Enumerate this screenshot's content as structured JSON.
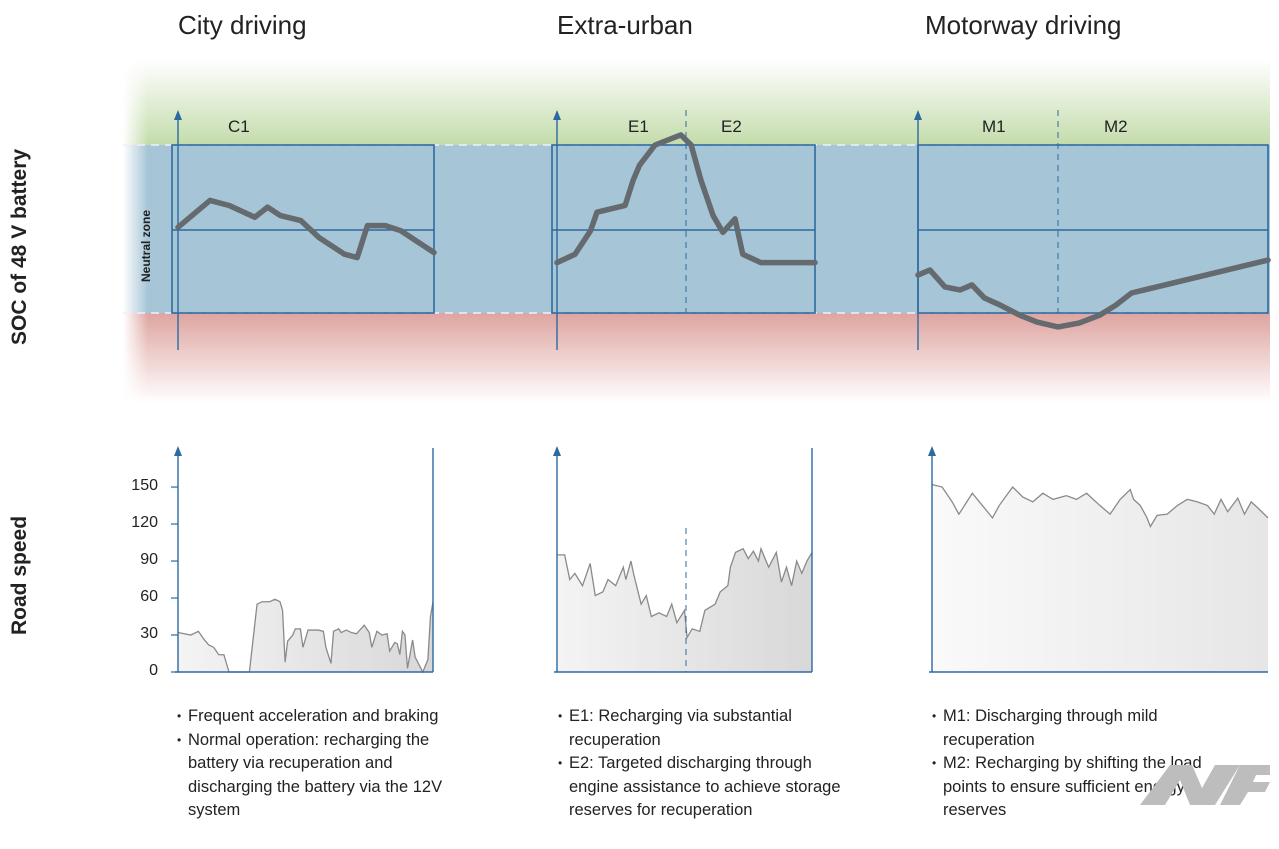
{
  "columns": [
    {
      "title": "City driving",
      "segments": [
        "C1"
      ],
      "notes": [
        "Frequent acceleration and braking",
        "Normal operation: recharging the battery via recuperation and discharging the battery via the 12V system"
      ]
    },
    {
      "title": "Extra-urban",
      "segments": [
        "E1",
        "E2"
      ],
      "notes": [
        "E1: Recharging via substantial recuperation",
        "E2: Targeted discharging through engine assistance to achieve storage reserves for recuperation"
      ]
    },
    {
      "title": "Motorway driving",
      "segments": [
        "M1",
        "M2"
      ],
      "notes": [
        "M1: Discharging through mild recuperation",
        "M2: Recharging by shifting the load points to ensure sufficient energy reserves"
      ]
    }
  ],
  "soc_axis_label": "SOC of 48 V battery",
  "neutral_zone_label": "Neutral zone",
  "speed_axis_label": "Road speed",
  "watermark": "Motor-Fan.jp",
  "colors": {
    "upper_zone": "#c9e0b4",
    "neutral_zone": "#a6c5d7",
    "lower_zone": "#dfa9a5",
    "axis": "#2d6a9f",
    "soc_line": "#646a6e"
  },
  "chart_data": [
    {
      "type": "line",
      "ylabel": "SOC of 48 V battery",
      "y_scale_note": "0 = lower neutral-zone boundary, 1 = upper boundary",
      "series": [
        {
          "name": "C1",
          "points": [
            [
              0,
              0.51
            ],
            [
              12.5,
              0.67
            ],
            [
              20,
              0.64
            ],
            [
              30,
              0.57
            ],
            [
              35,
              0.63
            ],
            [
              40,
              0.58
            ],
            [
              48,
              0.55
            ],
            [
              55,
              0.45
            ],
            [
              65,
              0.35
            ],
            [
              70,
              0.33
            ],
            [
              74,
              0.52
            ],
            [
              81,
              0.52
            ],
            [
              87,
              0.49
            ],
            [
              100,
              0.36
            ]
          ]
        },
        {
          "name": "E1/E2",
          "points": [
            [
              0,
              0.3
            ],
            [
              7,
              0.35
            ],
            [
              13,
              0.49
            ],
            [
              15.5,
              0.6
            ],
            [
              26.4,
              0.64
            ],
            [
              29.5,
              0.79
            ],
            [
              32,
              0.88
            ],
            [
              38,
              1.0
            ],
            [
              48,
              1.06
            ],
            [
              52,
              1.0
            ],
            [
              55.8,
              0.79
            ],
            [
              60.5,
              0.58
            ],
            [
              64.3,
              0.48
            ],
            [
              69,
              0.56
            ],
            [
              72,
              0.35
            ],
            [
              79,
              0.3
            ],
            [
              100,
              0.3
            ]
          ]
        },
        {
          "name": "M1/M2",
          "points": [
            [
              0,
              0.226
            ],
            [
              3.4,
              0.256
            ],
            [
              7.7,
              0.155
            ],
            [
              12,
              0.137
            ],
            [
              15.4,
              0.167
            ],
            [
              19,
              0.089
            ],
            [
              23.4,
              0.048
            ],
            [
              29,
              -0.012
            ],
            [
              34,
              -0.054
            ],
            [
              40,
              -0.083
            ],
            [
              46,
              -0.06
            ],
            [
              52,
              -0.012
            ],
            [
              56.6,
              0.048
            ],
            [
              61,
              0.119
            ],
            [
              100,
              0.315
            ]
          ]
        }
      ]
    },
    {
      "type": "area",
      "ylabel": "Road speed",
      "yticks": [
        0,
        30,
        60,
        90,
        120,
        150
      ],
      "ylim": [
        0,
        180
      ],
      "series": [
        {
          "points": [
            [
              0,
              32
            ],
            [
              5,
              30
            ],
            [
              8,
              33
            ],
            [
              10,
              27
            ],
            [
              12,
              22
            ],
            [
              14,
              20
            ],
            [
              16,
              14
            ],
            [
              18,
              14
            ],
            [
              20,
              0
            ],
            [
              28,
              0
            ],
            [
              31,
              55
            ],
            [
              33,
              57
            ],
            [
              36,
              57
            ],
            [
              38,
              59
            ],
            [
              40,
              57
            ],
            [
              41,
              50
            ],
            [
              42,
              8
            ],
            [
              43,
              25
            ],
            [
              45,
              30
            ],
            [
              46,
              35
            ],
            [
              48,
              35
            ],
            [
              49,
              20
            ],
            [
              51,
              34
            ],
            [
              55,
              34
            ],
            [
              57,
              33
            ],
            [
              58,
              20
            ],
            [
              60,
              7
            ],
            [
              61,
              33
            ],
            [
              63,
              35
            ],
            [
              64,
              32
            ],
            [
              66,
              34
            ],
            [
              68,
              32
            ],
            [
              70,
              31
            ],
            [
              73,
              38
            ],
            [
              75,
              32
            ],
            [
              76,
              20
            ],
            [
              78,
              33
            ],
            [
              80,
              30
            ],
            [
              82,
              31
            ],
            [
              83,
              17
            ],
            [
              85,
              24
            ],
            [
              86,
              23
            ],
            [
              87,
              14
            ],
            [
              88,
              33
            ],
            [
              89,
              30
            ],
            [
              90,
              3
            ],
            [
              92,
              26
            ],
            [
              93,
              12
            ],
            [
              95,
              4
            ],
            [
              96,
              0
            ],
            [
              98,
              10
            ],
            [
              99,
              45
            ],
            [
              100,
              57
            ]
          ]
        },
        {
          "points": [
            [
              0,
              95
            ],
            [
              3,
              95
            ],
            [
              5,
              75
            ],
            [
              7,
              80
            ],
            [
              10,
              70
            ],
            [
              13,
              88
            ],
            [
              15,
              62
            ],
            [
              18,
              65
            ],
            [
              20,
              75
            ],
            [
              23,
              70
            ],
            [
              26,
              85
            ],
            [
              27,
              75
            ],
            [
              29,
              90
            ],
            [
              30,
              80
            ],
            [
              33,
              55
            ],
            [
              35,
              62
            ],
            [
              37,
              45
            ],
            [
              40,
              48
            ],
            [
              43,
              45
            ],
            [
              45,
              55
            ],
            [
              47,
              40
            ],
            [
              50,
              50
            ],
            [
              51,
              28
            ],
            [
              53,
              35
            ],
            [
              56,
              33
            ],
            [
              58,
              50
            ],
            [
              62,
              55
            ],
            [
              64,
              65
            ],
            [
              67,
              70
            ],
            [
              68,
              85
            ],
            [
              70,
              97
            ],
            [
              73,
              100
            ],
            [
              75,
              92
            ],
            [
              77,
              98
            ],
            [
              79,
              90
            ],
            [
              80,
              100
            ],
            [
              83,
              85
            ],
            [
              86,
              97
            ],
            [
              88,
              73
            ],
            [
              90,
              85
            ],
            [
              92,
              70
            ],
            [
              94,
              90
            ],
            [
              96,
              80
            ],
            [
              98,
              90
            ],
            [
              100,
              97
            ]
          ]
        },
        {
          "points": [
            [
              0,
              152
            ],
            [
              3,
              150
            ],
            [
              6,
              138
            ],
            [
              8,
              128
            ],
            [
              12,
              145
            ],
            [
              15,
              135
            ],
            [
              18,
              125
            ],
            [
              20,
              135
            ],
            [
              24,
              150
            ],
            [
              27,
              142
            ],
            [
              30,
              138
            ],
            [
              33,
              145
            ],
            [
              36,
              140
            ],
            [
              40,
              143
            ],
            [
              43,
              140
            ],
            [
              46,
              145
            ],
            [
              50,
              135
            ],
            [
              53,
              128
            ],
            [
              56,
              140
            ],
            [
              59,
              148
            ],
            [
              60,
              140
            ],
            [
              62,
              135
            ],
            [
              64,
              125
            ],
            [
              65,
              118
            ],
            [
              67,
              127
            ],
            [
              70,
              128
            ],
            [
              73,
              135
            ],
            [
              76,
              140
            ],
            [
              79,
              138
            ],
            [
              82,
              135
            ],
            [
              84,
              128
            ],
            [
              86,
              140
            ],
            [
              88,
              130
            ],
            [
              91,
              141
            ],
            [
              93,
              128
            ],
            [
              95,
              138
            ],
            [
              97,
              133
            ],
            [
              100,
              125
            ]
          ]
        }
      ]
    }
  ]
}
